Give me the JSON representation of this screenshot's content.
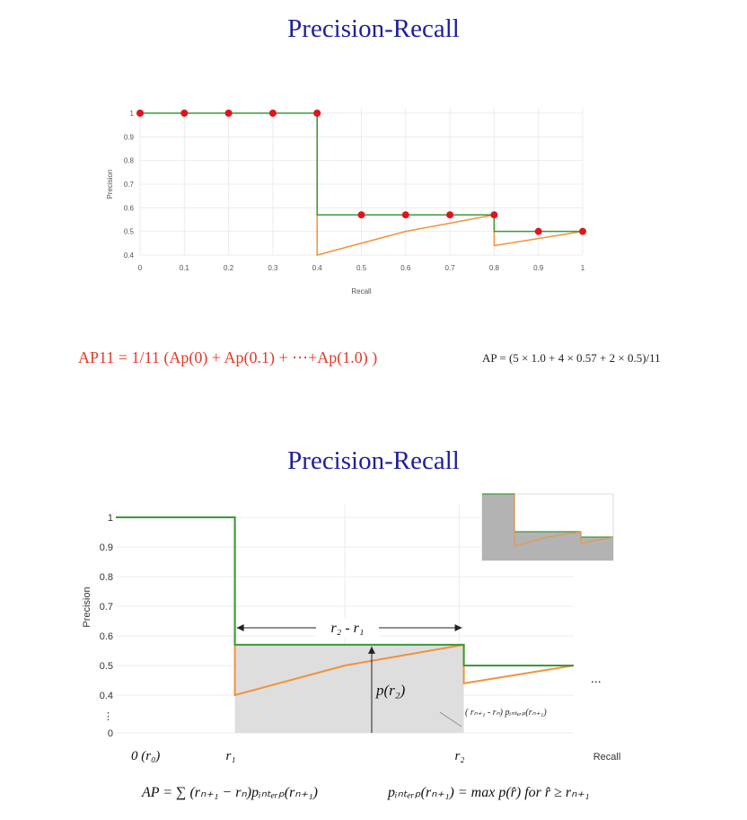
{
  "top_title": "Precision-Recall",
  "bottom_title": "Precision-Recall",
  "ap11_formula": "AP11 = 1/11 (Ap(0) + Ap(0.1) + ⋯+Ap(1.0) )",
  "ap_calc": "AP = (5 × 1.0 + 4 × 0.57 + 2 × 0.5)/11",
  "ap_formula": "AP = ∑ (rₙ₊₁ − rₙ)pᵢₙₜₑᵣₚ(rₙ₊₁)",
  "interp_formula": "pᵢₙₜₑᵣₚ(rₙ₊₁) = max p(r̂) for r̂ ≥ rₙ₊₁",
  "colors": {
    "title": "#1f1f9a",
    "interp": "#3a9a3a",
    "raw": "#f0923b",
    "points": "#e0141e",
    "shade": "#dedede"
  },
  "chart_data": [
    {
      "type": "line",
      "title": "",
      "xlabel": "Recall",
      "ylabel": "Precision",
      "xlim": [
        0,
        1
      ],
      "ylim": [
        0.4,
        1
      ],
      "x_ticks": [
        "0",
        "0.1",
        "0.2",
        "0.3",
        "0.4",
        "0.5",
        "0.6",
        "0.7",
        "0.8",
        "0.9",
        "1"
      ],
      "y_ticks": [
        "0.4",
        "0.5",
        "0.6",
        "0.7",
        "0.8",
        "0.9",
        "1"
      ],
      "grid": true,
      "series": [
        {
          "x": [
            0,
            0.4,
            0.4,
            0.8,
            0.8,
            1
          ],
          "y": [
            1,
            1,
            0.57,
            0.57,
            0.5,
            0.5
          ]
        },
        {
          "x": [
            0.4,
            0.4,
            0.6,
            0.8,
            0.8,
            1
          ],
          "y": [
            1,
            0.4,
            0.5,
            0.57,
            0.44,
            0.5
          ]
        },
        {
          "x": [
            0,
            0.1,
            0.2,
            0.3,
            0.4,
            0.5,
            0.6,
            0.7,
            0.8,
            0.9,
            1
          ],
          "y": [
            1,
            1,
            1,
            1,
            1,
            0.57,
            0.57,
            0.57,
            0.57,
            0.5,
            0.5
          ]
        }
      ]
    },
    {
      "type": "area",
      "title": "",
      "xlabel": "Recall",
      "ylabel": "Precision",
      "y_ticks": [
        "1",
        "0.9",
        "0.8",
        "0.7",
        "0.6",
        "0.5",
        "0.4",
        "⋮",
        "0"
      ],
      "x_labels": [
        "0 (r₀)",
        "r₁",
        "r₂"
      ],
      "series": [
        {
          "x": [
            0,
            0.26,
            0.26,
            0.76,
            0.76,
            1
          ],
          "y": [
            1,
            1,
            0.57,
            0.57,
            0.5,
            0.5
          ]
        },
        {
          "x": [
            0.26,
            0.26,
            0.5,
            0.76,
            0.76,
            1
          ],
          "y": [
            1,
            0.4,
            0.5,
            0.57,
            0.44,
            0.5
          ]
        }
      ],
      "shaded_region": {
        "x_from": 0.26,
        "x_to": 0.76,
        "y_top": 0.57
      },
      "annotations": [
        "r₂ - r₁",
        "p(r₂)",
        "( rₙ₊₁ - rₙ) pᵢₙₜₑᵣₚ(rₙ₊₁)",
        "..."
      ]
    }
  ]
}
